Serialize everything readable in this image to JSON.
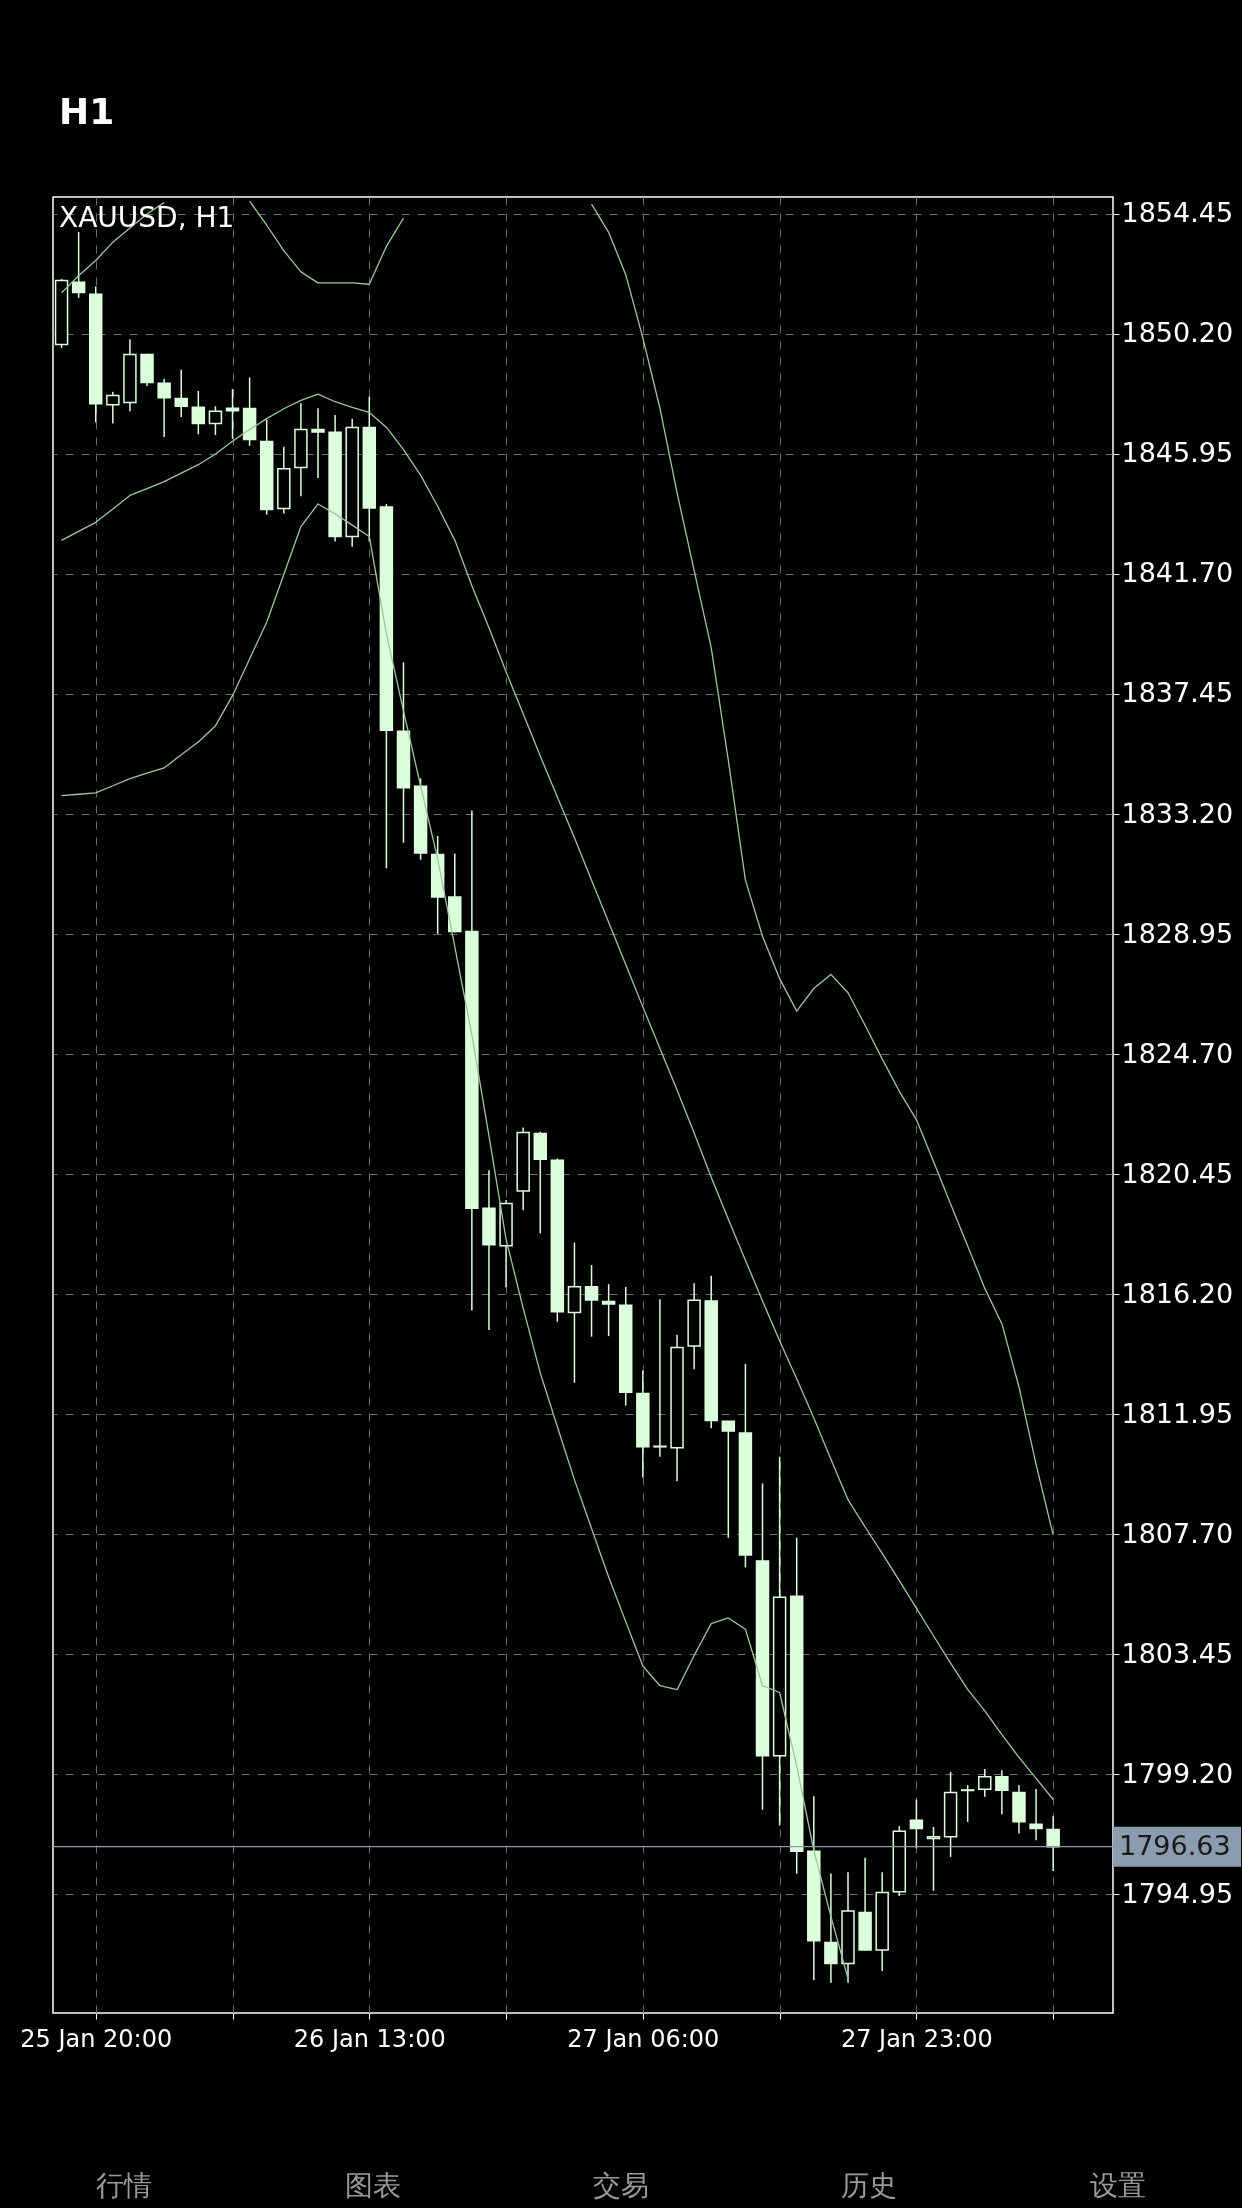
{
  "chart_data": {
    "type": "candlestick",
    "title": "XAUUSD, H1",
    "color": "#dcffdc",
    "categories": [
      null,
      null,
      "25 Jan 20:00",
      null,
      null,
      null,
      null,
      null,
      null,
      null,
      null,
      null,
      null,
      null,
      null,
      null,
      null,
      null,
      "26 Jan 13:00",
      null,
      null,
      null,
      null,
      null,
      null,
      null,
      null,
      null,
      null,
      null,
      null,
      null,
      null,
      null,
      "27 Jan 06:00",
      null,
      null,
      null,
      null,
      null,
      null,
      null,
      null,
      null,
      null,
      null,
      null,
      null,
      null,
      null,
      "27 Jan 23:00",
      null,
      null,
      null,
      null,
      null,
      null,
      null,
      null
    ],
    "ohlc": [
      [
        1849.83,
        1852.15,
        1849.7,
        1852.09
      ],
      [
        1852.03,
        1853.81,
        1851.48,
        1851.67
      ],
      [
        1851.61,
        1851.88,
        1847.07,
        1847.73
      ],
      [
        1847.69,
        1848.15,
        1847.03,
        1848.02
      ],
      [
        1847.77,
        1850.01,
        1847.46,
        1849.47
      ],
      [
        1849.47,
        1849.5,
        1848.36,
        1848.48
      ],
      [
        1848.45,
        1848.61,
        1846.55,
        1847.94
      ],
      [
        1847.91,
        1848.93,
        1847.26,
        1847.64
      ],
      [
        1847.6,
        1848.18,
        1846.65,
        1847.03
      ],
      [
        1847.03,
        1847.64,
        1846.62,
        1847.46
      ],
      [
        1847.57,
        1848.25,
        1846.49,
        1847.48
      ],
      [
        1847.56,
        1848.66,
        1846.24,
        1846.46
      ],
      [
        1846.39,
        1847.16,
        1843.8,
        1843.98
      ],
      [
        1844.02,
        1846.21,
        1843.84,
        1845.43
      ],
      [
        1845.47,
        1847.75,
        1844.45,
        1846.82
      ],
      [
        1846.82,
        1847.57,
        1845.1,
        1846.73
      ],
      [
        1846.72,
        1847.33,
        1842.85,
        1843.03
      ],
      [
        1843.03,
        1847.2,
        1842.66,
        1846.89
      ],
      [
        1846.89,
        1847.98,
        1842.85,
        1844.04
      ],
      [
        1844.07,
        1844.18,
        1831.28,
        1836.17
      ],
      [
        1836.13,
        1838.57,
        1832.18,
        1834.13
      ],
      [
        1834.18,
        1834.46,
        1831.58,
        1831.82
      ],
      [
        1831.77,
        1832.42,
        1828.96,
        1830.26
      ],
      [
        1830.26,
        1831.8,
        1829.0,
        1829.04
      ],
      [
        1829.04,
        1833.32,
        1815.62,
        1819.24
      ],
      [
        1819.24,
        1820.58,
        1814.93,
        1817.95
      ],
      [
        1817.91,
        1819.53,
        1816.44,
        1819.41
      ],
      [
        1819.85,
        1822.1,
        1819.17,
        1821.92
      ],
      [
        1821.89,
        1821.95,
        1818.35,
        1820.97
      ],
      [
        1820.94,
        1821.0,
        1815.22,
        1815.57
      ],
      [
        1815.55,
        1818.02,
        1813.06,
        1816.46
      ],
      [
        1816.46,
        1817.23,
        1814.69,
        1815.99
      ],
      [
        1815.94,
        1816.55,
        1814.71,
        1815.85
      ],
      [
        1815.8,
        1816.45,
        1812.25,
        1812.72
      ],
      [
        1812.68,
        1813.49,
        1809.7,
        1810.79
      ],
      [
        1810.79,
        1816.02,
        1810.44,
        1810.81
      ],
      [
        1810.76,
        1814.76,
        1809.57,
        1814.31
      ],
      [
        1814.36,
        1816.58,
        1813.54,
        1815.98
      ],
      [
        1815.95,
        1816.85,
        1811.45,
        1811.72
      ],
      [
        1811.7,
        1811.7,
        1807.57,
        1811.35
      ],
      [
        1811.28,
        1813.72,
        1806.52,
        1806.96
      ],
      [
        1806.75,
        1809.49,
        1797.94,
        1799.85
      ],
      [
        1799.85,
        1810.44,
        1797.38,
        1805.46
      ],
      [
        1805.5,
        1807.57,
        1795.67,
        1796.47
      ],
      [
        1796.47,
        1798.42,
        1791.9,
        1793.3
      ],
      [
        1793.24,
        1795.68,
        1791.81,
        1792.49
      ],
      [
        1792.49,
        1795.72,
        1791.81,
        1794.35
      ],
      [
        1794.3,
        1796.24,
        1792.95,
        1792.97
      ],
      [
        1792.97,
        1795.72,
        1792.23,
        1795.01
      ],
      [
        1795.03,
        1797.36,
        1794.88,
        1797.18
      ],
      [
        1797.57,
        1798.3,
        1796.57,
        1797.27
      ],
      [
        1796.92,
        1797.33,
        1795.07,
        1796.98
      ],
      [
        1796.98,
        1799.28,
        1796.27,
        1798.55
      ],
      [
        1798.62,
        1798.81,
        1797.51,
        1798.64
      ],
      [
        1798.66,
        1799.38,
        1798.4,
        1799.11
      ],
      [
        1799.11,
        1799.34,
        1797.78,
        1798.63
      ],
      [
        1798.55,
        1798.81,
        1797.1,
        1797.51
      ],
      [
        1797.42,
        1798.67,
        1796.86,
        1797.27
      ],
      [
        1797.24,
        1797.71,
        1795.77,
        1796.63
      ]
    ],
    "series": [
      {
        "type": "line",
        "color": "#9cc89c",
        "values": [
          1851.66,
          1852.26,
          1852.8,
          1853.45,
          1853.95,
          1854.45,
          1854.85,
          null,
          null,
          null,
          null,
          1854.9,
          1854.05,
          1853.15,
          1852.4,
          1852.01,
          1852.01,
          1852.01,
          1851.96,
          1853.3,
          1854.3,
          null,
          null,
          null,
          null,
          null,
          null,
          null,
          null,
          null,
          null,
          1854.8,
          1853.8,
          1852.3,
          1850.06,
          1847.57,
          1844.58,
          1841.83,
          1839.09,
          1835.1,
          1830.86,
          1828.87,
          1827.37,
          1826.22,
          1827.02,
          1827.52,
          1826.87,
          1825.72,
          1824.53,
          1823.38,
          1822.38,
          1820.89,
          1819.39,
          1817.9,
          1816.4,
          1815.15,
          1812.91,
          1810.17,
          1807.67
        ]
      },
      {
        "type": "line",
        "color": "#9cc89c",
        "values": [
          1842.89,
          1843.21,
          1843.53,
          1844.0,
          1844.48,
          1844.72,
          1844.97,
          1845.27,
          1845.57,
          1845.95,
          1846.4,
          1846.82,
          1847.2,
          1847.55,
          1847.85,
          1848.07,
          1847.8,
          1847.6,
          1847.42,
          1846.9,
          1846.1,
          1845.2,
          1844.1,
          1842.9,
          1841.28,
          1839.8,
          1838.24,
          1836.75,
          1835.25,
          1833.8,
          1832.36,
          1830.85,
          1829.37,
          1827.87,
          1826.37,
          1824.9,
          1823.43,
          1821.9,
          1820.34,
          1818.85,
          1817.4,
          1815.95,
          1814.55,
          1813.2,
          1811.81,
          1810.35,
          1808.92,
          1807.95,
          1807.02,
          1806.05,
          1805.08,
          1804.1,
          1803.13,
          1802.2,
          1801.44,
          1800.6,
          1799.79,
          1799.05,
          1798.3
        ]
      },
      {
        "type": "line",
        "color": "#9cc89c",
        "values": [
          1833.85,
          1833.9,
          1833.95,
          1834.2,
          1834.45,
          1834.65,
          1834.83,
          1835.3,
          1835.75,
          1836.32,
          1837.39,
          1838.69,
          1839.99,
          1841.68,
          1843.38,
          1844.18,
          1843.83,
          1843.43,
          1843.03,
          1839.59,
          1836.85,
          1834.2,
          1831.61,
          1828.5,
          1825.38,
          1821.8,
          1818.14,
          1815.7,
          1813.41,
          1811.5,
          1809.62,
          1807.9,
          1806.18,
          1804.6,
          1803.03,
          1802.33,
          1802.19,
          1803.4,
          1804.53,
          1804.73,
          1804.33,
          1802.33,
          1802.09,
          1799.49,
          1796.5,
          1794.16,
          1791.96,
          null,
          null,
          null,
          null,
          null,
          null,
          null,
          null,
          null,
          null,
          null,
          null
        ]
      }
    ],
    "ylim": [
      1790.74,
      1855.05
    ],
    "yticks": [
      1854.45,
      {
        "value": 1850.2,
        "label": "1850.20"
      },
      1845.95,
      {
        "value": 1841.7,
        "label": "1841.70"
      },
      1837.45,
      {
        "value": 1833.2,
        "label": "1833.20"
      },
      1828.95,
      {
        "value": 1824.7,
        "label": "1824.70"
      },
      1820.45,
      {
        "value": 1816.2,
        "label": "1816.20"
      },
      1811.95,
      {
        "value": 1807.7,
        "label": "1807.70"
      },
      1803.45,
      {
        "value": 1799.2,
        "label": "1799.20"
      },
      1794.95
    ],
    "grid": true,
    "ref_lines": [
      {
        "axis": "y",
        "value": 1796.63,
        "label": "1796.63",
        "color": "#8c9cb0"
      }
    ],
    "annotations": [
      "H1",
      "行情",
      "图表",
      "交易",
      "历史",
      "设置"
    ]
  }
}
